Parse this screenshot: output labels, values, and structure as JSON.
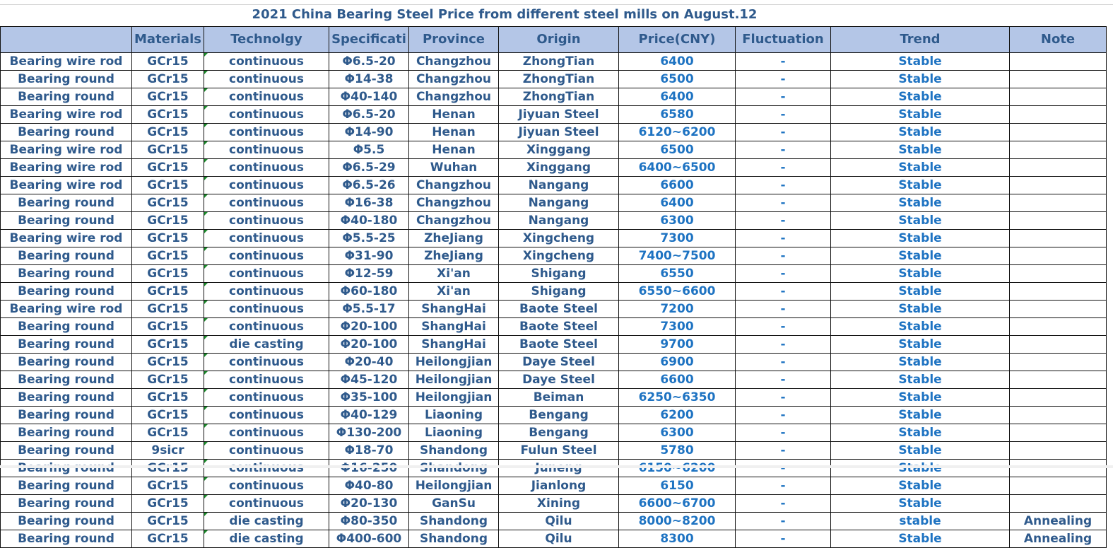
{
  "title": "2021 China Bearing Steel Price from different steel mills on  August.12",
  "headers": [
    "",
    "Materials",
    "Technolgy",
    "Specificati",
    "Province",
    "Origin",
    "Price(CNY)",
    "Fluctuation",
    "Trend",
    "Note"
  ],
  "rows": [
    [
      "Bearing wire rod",
      "GCr15",
      "continuous",
      "Φ6.5-20",
      "Changzhou",
      "ZhongTian",
      "6400",
      "-",
      "Stable",
      ""
    ],
    [
      "Bearing round",
      "GCr15",
      "continuous",
      "Φ14-38",
      "Changzhou",
      "ZhongTian",
      "6500",
      "-",
      "Stable",
      ""
    ],
    [
      "Bearing round",
      "GCr15",
      "continuous",
      "Φ40-140",
      "Changzhou",
      "ZhongTian",
      "6400",
      "-",
      "Stable",
      ""
    ],
    [
      "Bearing wire rod",
      "GCr15",
      "continuous",
      "Φ6.5-20",
      "Henan",
      "Jiyuan Steel",
      "6580",
      "-",
      "Stable",
      ""
    ],
    [
      "Bearing round",
      "GCr15",
      "continuous",
      "Φ14-90",
      "Henan",
      "Jiyuan Steel",
      "6120~6200",
      "-",
      "Stable",
      ""
    ],
    [
      "Bearing wire rod",
      "GCr15",
      "continuous",
      "Φ5.5",
      "Henan",
      "Xinggang",
      "6500",
      "-",
      "Stable",
      ""
    ],
    [
      "Bearing wire rod",
      "GCr15",
      "continuous",
      "Φ6.5-29",
      "Wuhan",
      "Xinggang",
      "6400~6500",
      "-",
      "Stable",
      ""
    ],
    [
      "Bearing wire rod",
      "GCr15",
      "continuous",
      "Φ6.5-26",
      "Changzhou",
      "Nangang",
      "6600",
      "-",
      "Stable",
      ""
    ],
    [
      "Bearing round",
      "GCr15",
      "continuous",
      "Φ16-38",
      "Changzhou",
      "Nangang",
      "6400",
      "-",
      "Stable",
      ""
    ],
    [
      "Bearing round",
      "GCr15",
      "continuous",
      "Φ40-180",
      "Changzhou",
      "Nangang",
      "6300",
      "-",
      "Stable",
      ""
    ],
    [
      "Bearing wire rod",
      "GCr15",
      "continuous",
      "Φ5.5-25",
      "ZheJiang",
      "Xingcheng",
      "7300",
      "-",
      "Stable",
      ""
    ],
    [
      "Bearing round",
      "GCr15",
      "continuous",
      "Φ31-90",
      "ZheJiang",
      "Xingcheng",
      "7400~7500",
      "-",
      "Stable",
      ""
    ],
    [
      "Bearing round",
      "GCr15",
      "continuous",
      "Φ12-59",
      "Xi'an",
      "Shigang",
      "6550",
      "-",
      "Stable",
      ""
    ],
    [
      "Bearing round",
      "GCr15",
      "continuous",
      "Φ60-180",
      "Xi'an",
      "Shigang",
      "6550~6600",
      "-",
      "Stable",
      ""
    ],
    [
      "Bearing wire rod",
      "GCr15",
      "continuous",
      "Φ5.5-17",
      "ShangHai",
      "Baote Steel",
      "7200",
      "-",
      "Stable",
      ""
    ],
    [
      "Bearing round",
      "GCr15",
      "continuous",
      "Φ20-100",
      "ShangHai",
      "Baote Steel",
      "7300",
      "-",
      "Stable",
      ""
    ],
    [
      "Bearing round",
      "GCr15",
      "die casting",
      "Φ20-100",
      "ShangHai",
      "Baote Steel",
      "9700",
      "-",
      "Stable",
      ""
    ],
    [
      "Bearing round",
      "GCr15",
      "continuous",
      "Φ20-40",
      "Heilongjian",
      "Daye  Steel",
      "6900",
      "-",
      "Stable",
      ""
    ],
    [
      "Bearing round",
      "GCr15",
      "continuous",
      "Φ45-120",
      "Heilongjian",
      "Daye  Steel",
      "6600",
      "-",
      "Stable",
      ""
    ],
    [
      "Bearing round",
      "GCr15",
      "continuous",
      "Φ35-100",
      "Heilongjian",
      "Beiman",
      "6250~6350",
      "-",
      "Stable",
      ""
    ],
    [
      "Bearing round",
      "GCr15",
      "continuous",
      "Φ40-129",
      "Liaoning",
      "Bengang",
      "6200",
      "-",
      "Stable",
      ""
    ],
    [
      "Bearing round",
      "GCr15",
      "continuous",
      "Φ130-200",
      "Liaoning",
      "Bengang",
      "6300",
      "-",
      "Stable",
      ""
    ],
    [
      "Bearing round",
      "9sicr",
      "continuous",
      "Φ18-70",
      "Shandong",
      "Fulun Steel",
      "5780",
      "-",
      "Stable",
      ""
    ],
    [
      "Bearing round",
      "GCr15",
      "continuous",
      "Φ16-250",
      "Shandong",
      "Juneng",
      "6150~6200",
      "-",
      "Stable",
      ""
    ],
    [
      "Bearing round",
      "GCr15",
      "continuous",
      "Φ40-80",
      "Heilongjian",
      "Jianlong",
      "6150",
      "-",
      "Stable",
      ""
    ],
    [
      "Bearing round",
      "GCr15",
      "continuous",
      "Φ20-130",
      "GanSu",
      "Xining",
      "6600~6700",
      "-",
      "Stable",
      ""
    ],
    [
      "Bearing round",
      "GCr15",
      "die casting",
      "Φ80-350",
      "Shandong",
      "Qilu",
      "8000~8200",
      "-",
      "stable",
      "Annealing"
    ],
    [
      "Bearing round",
      "GCr15",
      "die casting",
      "Φ400-600",
      "Shandong",
      "Qilu",
      "8300",
      "-",
      "Stable",
      "Annealing"
    ]
  ],
  "colors": {
    "header_bg": "#b4c6e7",
    "text": "#2f5a8c",
    "price_text": "#1e73c2"
  }
}
